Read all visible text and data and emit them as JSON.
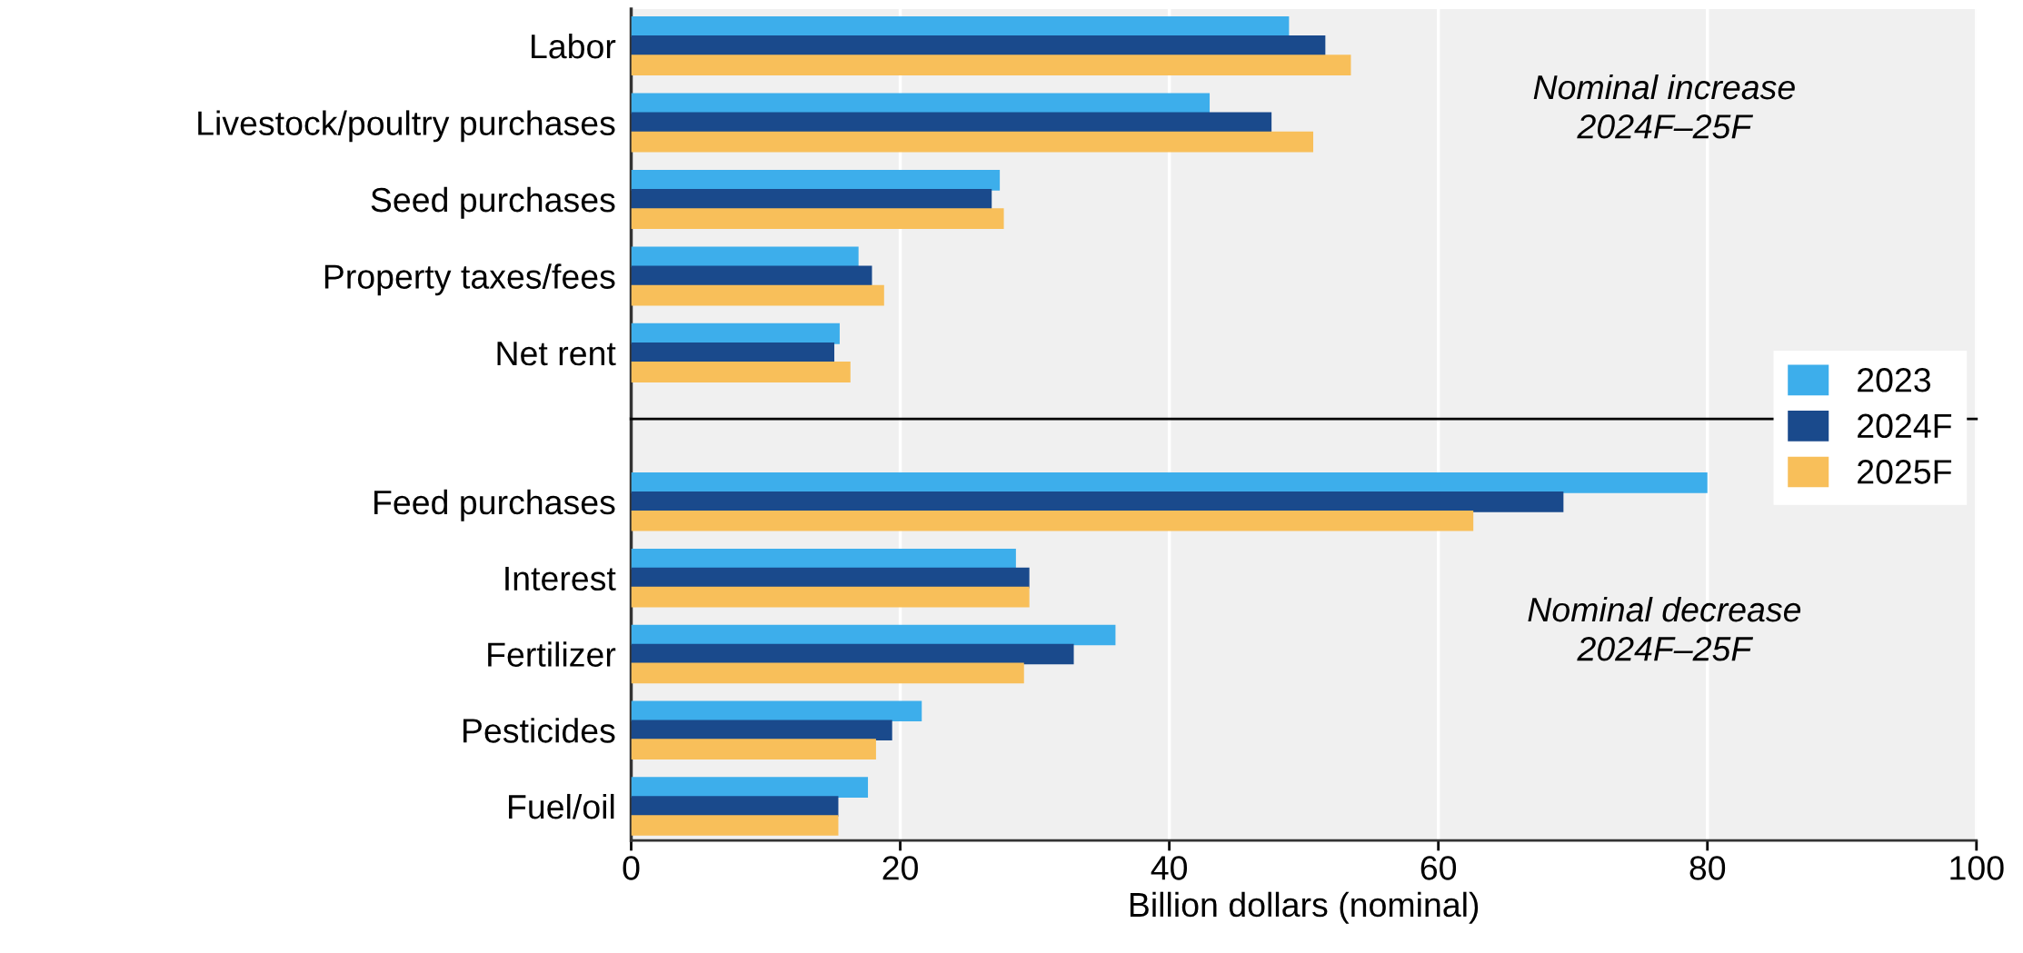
{
  "chart_data": [
    {
      "type": "bar",
      "orientation": "horizontal",
      "categories": [
        "Labor",
        "Livestock/poultry purchases",
        "Seed purchases",
        "Property taxes/fees",
        "Net rent"
      ],
      "series": [
        {
          "name": "2023",
          "color": "#3daeeb",
          "values": [
            48.9,
            43.0,
            27.4,
            16.9,
            15.5
          ]
        },
        {
          "name": "2024F",
          "color": "#1a4a8c",
          "values": [
            51.6,
            47.6,
            26.8,
            17.9,
            15.1
          ]
        },
        {
          "name": "2025F",
          "color": "#f8bf5a",
          "values": [
            53.5,
            50.7,
            27.7,
            18.8,
            16.3
          ]
        }
      ],
      "xlim": [
        0,
        100
      ],
      "xticks": [
        0,
        20,
        40,
        60,
        80,
        100
      ],
      "tick_labels": "y",
      "annotations": [
        "Nominal increase\n2024F–25F"
      ],
      "grid": "x",
      "legend": "bottom right"
    },
    {
      "type": "bar",
      "orientation": "horizontal",
      "xlabel": "Billion dollars (nominal)",
      "categories": [
        "Feed purchases",
        "Interest",
        "Fertilizer",
        "Pesticides",
        "Fuel/oil"
      ],
      "series": [
        {
          "color": "#3daeeb",
          "values": [
            80.0,
            28.6,
            36.0,
            21.6,
            17.6
          ]
        },
        {
          "color": "#1a4a8c",
          "values": [
            69.3,
            29.6,
            32.9,
            19.4,
            15.4
          ]
        },
        {
          "color": "#f8bf5a",
          "values": [
            62.6,
            29.6,
            29.2,
            18.2,
            15.4
          ]
        }
      ],
      "xlim": [
        0,
        100
      ],
      "xticks": [
        0,
        20,
        40,
        60,
        80,
        100
      ],
      "annotations": [
        "Nominal decrease\n2024F–25F"
      ],
      "grid": "x"
    }
  ]
}
